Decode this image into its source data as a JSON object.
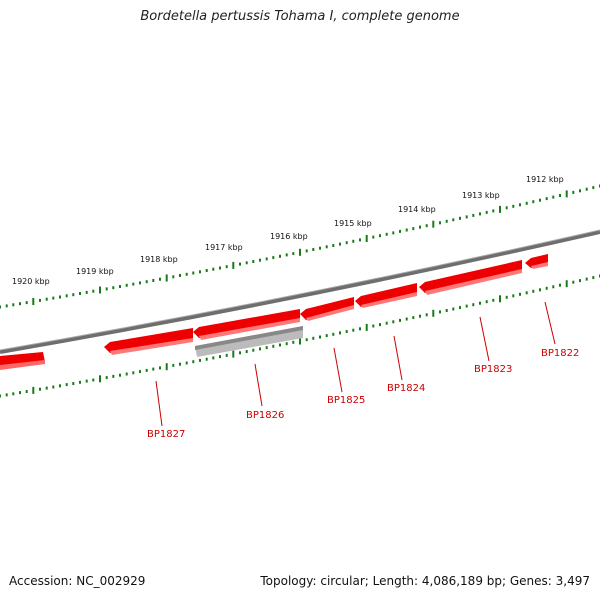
{
  "title": "Bordetella pertussis Tohama I, complete genome",
  "footer": {
    "accession": "Accession: NC_002929",
    "stats": "Topology: circular; Length: 4,086,189 bp; Genes: 3,497"
  },
  "kbp_labels": [
    "1920 kbp",
    "1919 kbp",
    "1918 kbp",
    "1917 kbp",
    "1916 kbp",
    "1915 kbp",
    "1914 kbp",
    "1913 kbp",
    "1912 kbp"
  ],
  "genes": [
    {
      "label": "BP1827",
      "strand": "reverse"
    },
    {
      "label": "BP1826",
      "strand": "pseudogene"
    },
    {
      "label": "BP1825",
      "strand": "reverse"
    },
    {
      "label": "BP1824",
      "strand": "reverse"
    },
    {
      "label": "BP1823",
      "strand": "reverse"
    },
    {
      "label": "BP1822",
      "strand": "reverse"
    }
  ],
  "colors": {
    "backbone": "#777777",
    "gene": "#ee0000",
    "pseudogene": "#bbbbbb",
    "ruler": "#1a7a1a",
    "label": "#cc0000"
  }
}
